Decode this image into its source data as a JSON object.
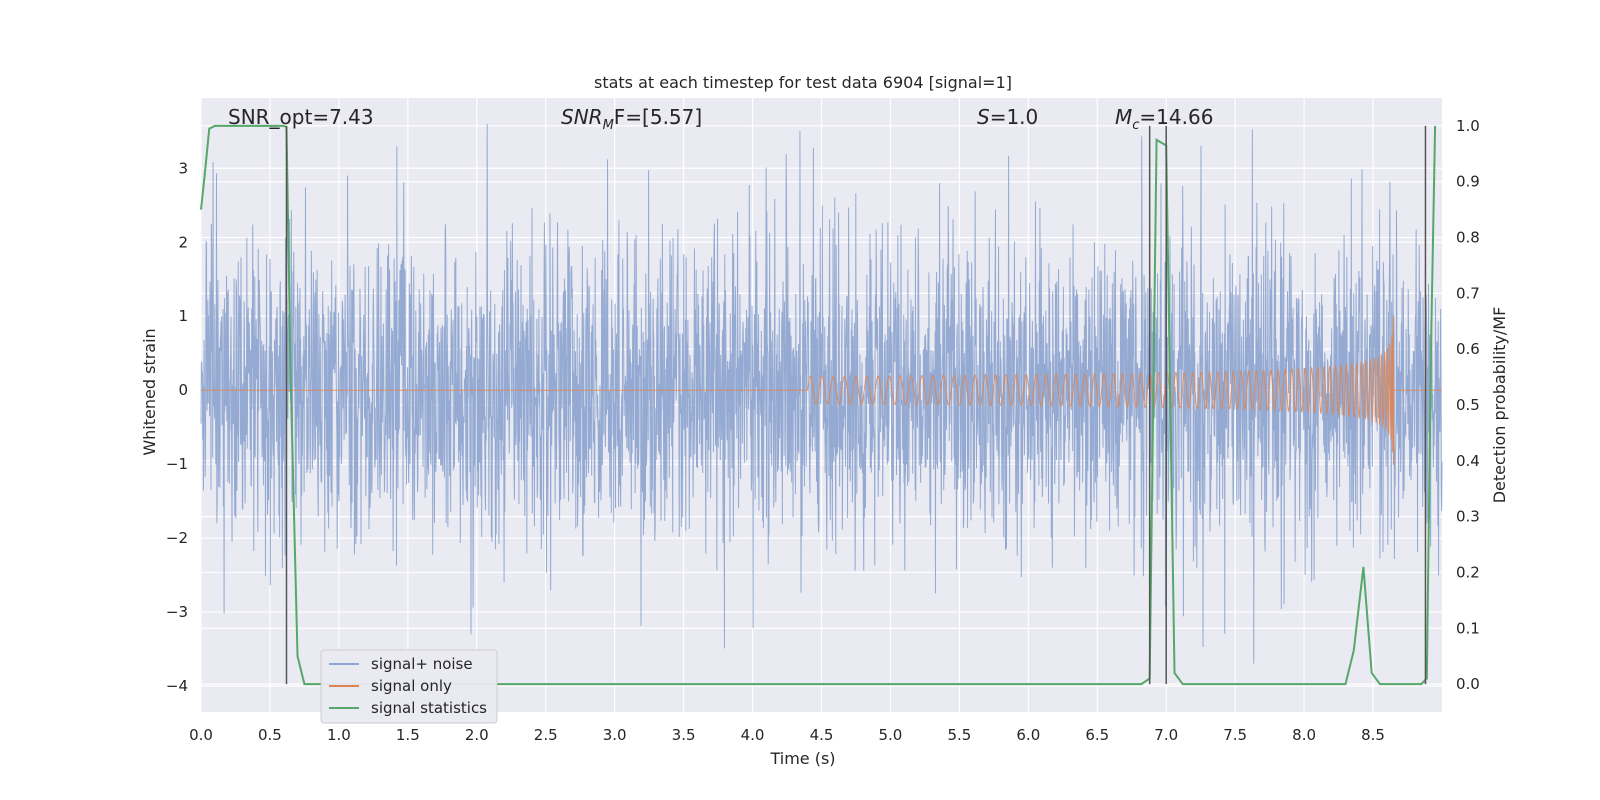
{
  "chart_data": {
    "type": "line",
    "title": "stats at each timestep for test data 6904 [signal=1]",
    "xlabel": "Time (s)",
    "ylabel": "Whitened strain",
    "y2label": "Detection probability/MF",
    "xlim": [
      0.0,
      9.0
    ],
    "ylim": [
      -4.35,
      3.95
    ],
    "y2lim": [
      -0.05,
      1.05
    ],
    "xticks": [
      "0.0",
      "0.5",
      "1.0",
      "1.5",
      "2.0",
      "2.5",
      "3.0",
      "3.5",
      "4.0",
      "4.5",
      "5.0",
      "5.5",
      "6.0",
      "6.5",
      "7.0",
      "7.5",
      "8.0",
      "8.5"
    ],
    "xtick_values": [
      0,
      0.5,
      1,
      1.5,
      2,
      2.5,
      3,
      3.5,
      4,
      4.5,
      5,
      5.5,
      6,
      6.5,
      7,
      7.5,
      8,
      8.5
    ],
    "yticks": [
      "−4",
      "−3",
      "−2",
      "−1",
      "0",
      "1",
      "2",
      "3"
    ],
    "ytick_values": [
      -4,
      -3,
      -2,
      -1,
      0,
      1,
      2,
      3
    ],
    "y2ticks": [
      "0.0",
      "0.1",
      "0.2",
      "0.3",
      "0.4",
      "0.5",
      "0.6",
      "0.7",
      "0.8",
      "0.9",
      "1.0"
    ],
    "y2tick_values": [
      0,
      0.1,
      0.2,
      0.3,
      0.4,
      0.5,
      0.6,
      0.7,
      0.8,
      0.9,
      1.0
    ],
    "grid": true,
    "legend_position": "bottom-left",
    "annotations": {
      "snr_opt": "SNR_opt=7.43",
      "snr_mf_label": "SNR",
      "snr_mf_sub": "M",
      "snr_mf_rest": "F=[5.57]",
      "s_label": "S",
      "s_value": "=1.0",
      "mc_label": "M",
      "mc_sub": "c",
      "mc_value": "=14.66"
    },
    "series": [
      {
        "name": "signal+ noise",
        "color": "#8fa6d0",
        "kind": "noise",
        "noise_sigma": 1.0,
        "noise_peak_max": 3.6,
        "noise_peak_min": -3.85
      },
      {
        "name": "signal only",
        "color": "#dd8452",
        "kind": "chirp",
        "chirp_start": 4.4,
        "chirp_end": 8.65,
        "chirp_peak_amplitude": 1.05
      },
      {
        "name": "signal statistics",
        "color": "#55a868",
        "axis": "right",
        "x": [
          0.0,
          0.03,
          0.06,
          0.1,
          0.2,
          0.3,
          0.4,
          0.5,
          0.55,
          0.6,
          0.62,
          0.65,
          0.7,
          0.75,
          1.0,
          2.0,
          3.0,
          4.0,
          5.0,
          6.0,
          6.5,
          6.82,
          6.88,
          6.93,
          7.0,
          7.06,
          7.12,
          7.5,
          8.0,
          8.3,
          8.36,
          8.43,
          8.49,
          8.55,
          8.65,
          8.75,
          8.85,
          8.89,
          8.92,
          8.95
        ],
        "y": [
          0.85,
          0.92,
          0.995,
          1.0,
          1.0,
          1.0,
          1.0,
          1.0,
          1.0,
          1.0,
          0.998,
          0.55,
          0.05,
          0.0,
          0.0,
          0.0,
          0.0,
          0.0,
          0.0,
          0.0,
          0.0,
          0.0,
          0.01,
          0.975,
          0.965,
          0.02,
          0.0,
          0.0,
          0.0,
          0.0,
          0.06,
          0.21,
          0.02,
          0.0,
          0.0,
          0.0,
          0.0,
          0.01,
          0.6,
          1.0
        ]
      }
    ],
    "vlines": [
      0.62,
      6.88,
      7.0,
      8.88
    ]
  }
}
